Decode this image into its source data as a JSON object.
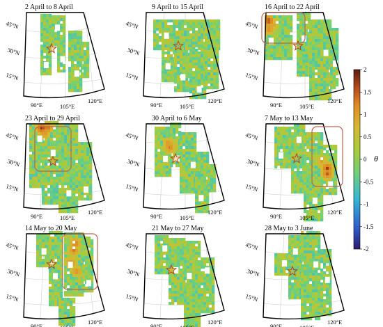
{
  "figure": {
    "panels": [
      {
        "title": "2 April to 8 April",
        "highlight": false
      },
      {
        "title": "9 April to 15 April",
        "highlight": false
      },
      {
        "title": "16 April to 22 April",
        "highlight": true
      },
      {
        "title": "23 April to 29 April",
        "highlight": true
      },
      {
        "title": "30 April to 6 May",
        "highlight": false
      },
      {
        "title": "7 May to 13 May",
        "highlight": true
      },
      {
        "title": "14 May to 20 May",
        "highlight": true
      },
      {
        "title": "21 May to 27 May",
        "highlight": false
      },
      {
        "title": "28 May to 3 June",
        "highlight": false
      }
    ],
    "lat_labels": [
      "45°N",
      "30°N",
      "15°N"
    ],
    "lon_labels": [
      "90°E",
      "105°E",
      "120°E"
    ],
    "colorbar": {
      "label": "θ",
      "min": -2,
      "max": 2,
      "ticks": [
        "2",
        "1.5",
        "1",
        "0.5",
        "0",
        "-0.5",
        "-1",
        "-1.5",
        "-2"
      ]
    },
    "colors": {
      "highlight_box": "#c0624d",
      "star_fill": "#f2a23a",
      "gridline": "#cfcfcf"
    },
    "marker_icon": "star-icon"
  }
}
